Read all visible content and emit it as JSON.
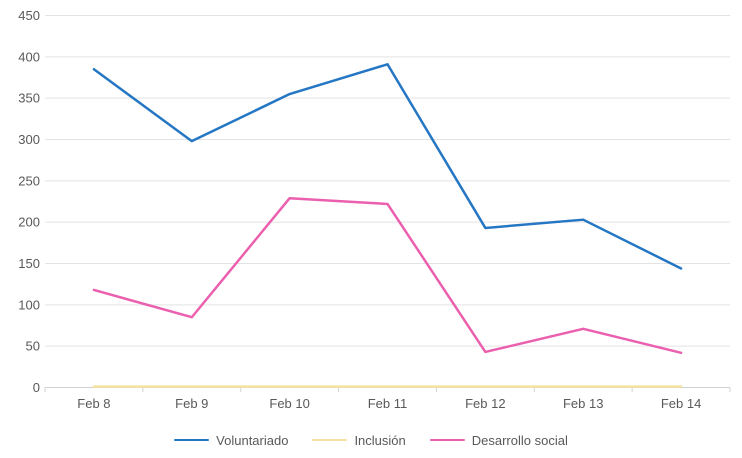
{
  "chart_data": {
    "type": "line",
    "title": "",
    "xlabel": "",
    "ylabel": "",
    "categories": [
      "Feb 8",
      "Feb 9",
      "Feb 10",
      "Feb 11",
      "Feb 12",
      "Feb 13",
      "Feb 14"
    ],
    "series": [
      {
        "name": "Voluntariado",
        "color": "#2577c4",
        "values": [
          385,
          298,
          355,
          391,
          193,
          203,
          144
        ]
      },
      {
        "name": "Inclusión",
        "color": "#f4e1a0",
        "values": [
          1,
          1,
          1,
          1,
          1,
          1,
          1
        ]
      },
      {
        "name": "Desarrollo social",
        "color": "#ea5fae",
        "values": [
          118,
          85,
          229,
          222,
          43,
          71,
          42
        ]
      }
    ],
    "ylim": [
      0,
      450
    ],
    "yticks": [
      0,
      50,
      100,
      150,
      200,
      250,
      300,
      350,
      400,
      450
    ],
    "grid": true,
    "legend_position": "bottom"
  }
}
